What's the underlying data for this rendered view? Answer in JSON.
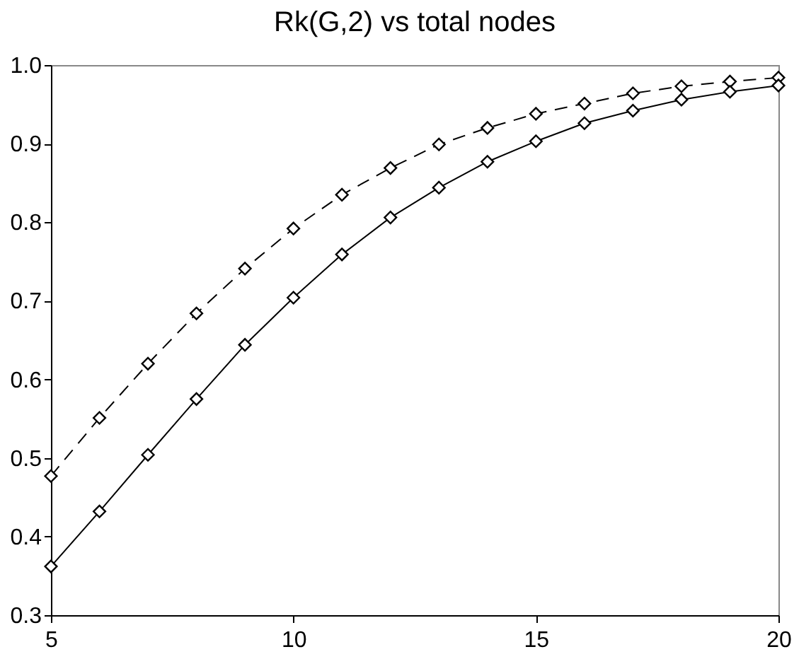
{
  "chart_data": {
    "type": "line",
    "title": "Rk(G,2) vs total nodes",
    "x": [
      5,
      6,
      7,
      8,
      9,
      10,
      11,
      12,
      13,
      14,
      15,
      16,
      17,
      18,
      19,
      20
    ],
    "xlim": [
      5,
      20
    ],
    "xticks": [
      5,
      10,
      15,
      20
    ],
    "ylim": [
      0.3,
      1.0
    ],
    "yticks": [
      0.3,
      0.4,
      0.5,
      0.6,
      0.7,
      0.8,
      0.9,
      {
        "value": 1.0,
        "label": "1.0"
      }
    ],
    "grid": false,
    "marker": "diamond",
    "series": [
      {
        "color": "#000000",
        "line_style": "dashed",
        "values": [
          0.477,
          0.551,
          0.62,
          0.684,
          0.741,
          0.792,
          0.835,
          0.869,
          0.899,
          0.92,
          0.938,
          0.951,
          0.964,
          0.973,
          0.979,
          0.984
        ]
      },
      {
        "color": "#000000",
        "line_style": "solid",
        "values": [
          0.362,
          0.432,
          0.504,
          0.575,
          0.644,
          0.704,
          0.759,
          0.806,
          0.844,
          0.877,
          0.903,
          0.926,
          0.942,
          0.956,
          0.966,
          0.974
        ]
      }
    ]
  }
}
